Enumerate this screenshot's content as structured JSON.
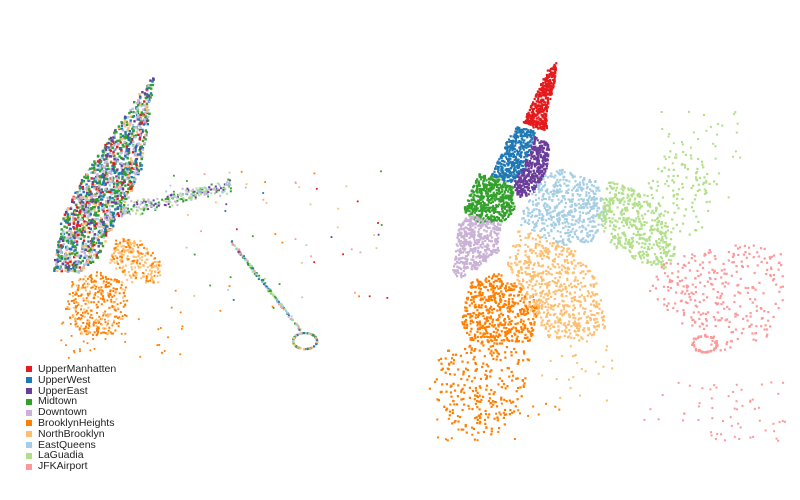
{
  "chart_data": [
    {
      "type": "scatter",
      "panel": "left",
      "title": "",
      "xlabel": "",
      "ylabel": "",
      "grid": false,
      "legend": "bottom-left",
      "note": "points from all clusters overlap, colored by assigned cluster"
    },
    {
      "type": "scatter",
      "panel": "right",
      "title": "",
      "xlabel": "",
      "ylabel": "",
      "grid": false,
      "legend": "none",
      "note": "points grouped spatially by cluster"
    }
  ],
  "legend": {
    "items": [
      {
        "label": "UpperManhatten",
        "color": "#e41a1c"
      },
      {
        "label": "UpperWest",
        "color": "#1f78b4"
      },
      {
        "label": "UpperEast",
        "color": "#6a3d9a"
      },
      {
        "label": "Midtown",
        "color": "#33a02c"
      },
      {
        "label": "Downtown",
        "color": "#cab2d6"
      },
      {
        "label": "BrooklynHeights",
        "color": "#ff7f00"
      },
      {
        "label": "NorthBrooklyn",
        "color": "#fdbf6f"
      },
      {
        "label": "EastQueens",
        "color": "#a6cee3"
      },
      {
        "label": "LaGuadia",
        "color": "#b2df8a"
      },
      {
        "label": "JFKAirport",
        "color": "#fb9a99"
      }
    ]
  }
}
